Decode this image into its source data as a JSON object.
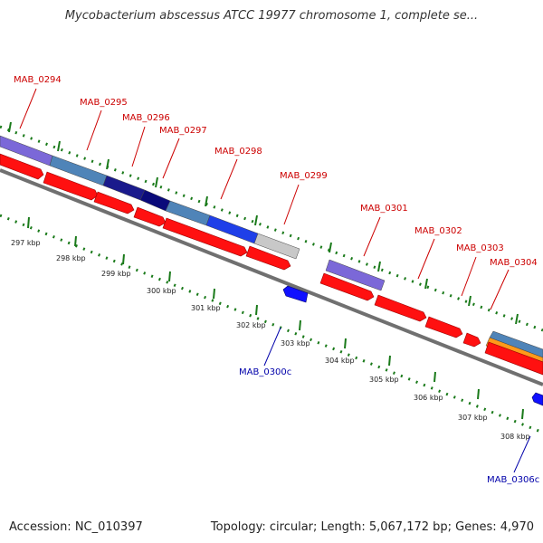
{
  "header": {
    "title": "Mycobacterium abscessus ATCC 19977 chromosome 1, complete se..."
  },
  "footer": {
    "accession": "Accession: NC_010397",
    "summary": "Topology: circular; Length: 5,067,172 bp; Genes: 4,970"
  },
  "colors": {
    "forward_gene": "#ff0000",
    "reverse_gene": "#0000ff",
    "forward_label": "#cc0000",
    "reverse_label": "#0000aa",
    "tick": "#1a7a1a",
    "backbone": "#808080"
  },
  "genes_forward": [
    "MAB_0294",
    "MAB_0295",
    "MAB_0296",
    "MAB_0297",
    "MAB_0298",
    "MAB_0299",
    "MAB_0301",
    "MAB_0302",
    "MAB_0303",
    "MAB_0304"
  ],
  "genes_reverse": [
    "MAB_0300c",
    "MAB_0306c"
  ],
  "ruler": [
    "297 kbp",
    "298 kbp",
    "299 kbp",
    "300 kbp",
    "301 kbp",
    "302 kbp",
    "303 kbp",
    "304 kbp",
    "305 kbp",
    "306 kbp",
    "307 kbp",
    "308 kbp"
  ]
}
